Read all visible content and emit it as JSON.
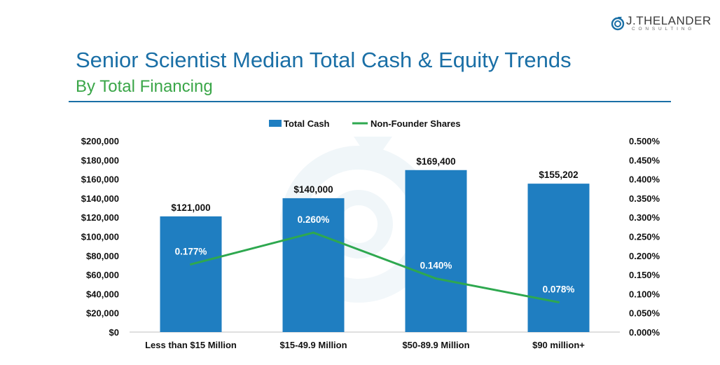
{
  "logo": {
    "name": "J.THELANDER",
    "sub": "CONSULTING",
    "icon": "spiral-logo-icon"
  },
  "header": {
    "title": "Senior Scientist Median Total Cash & Equity Trends",
    "subtitle": "By Total Financing"
  },
  "colors": {
    "bar": "#1f7ec1",
    "line": "#2ea84f",
    "title": "#1a6fa6",
    "subtitle": "#3aa648"
  },
  "chart_data": {
    "type": "bar",
    "categories": [
      "Less than $15 Million",
      "$15-49.9 Million",
      "$50-89.9 Million",
      "$90 million+"
    ],
    "series": [
      {
        "name": "Total Cash",
        "type": "bar",
        "axis": "left",
        "values": [
          121000,
          140000,
          169400,
          155202
        ],
        "labels": [
          "$121,000",
          "$140,000",
          "$169,400",
          "$155,202"
        ]
      },
      {
        "name": "Non-Founder Shares",
        "type": "line",
        "axis": "right",
        "values": [
          0.177,
          0.26,
          0.14,
          0.078
        ],
        "labels": [
          "0.177%",
          "0.260%",
          "0.140%",
          "0.078%"
        ]
      }
    ],
    "left_axis": {
      "ylim": [
        0,
        200000
      ],
      "ticks": [
        "$0",
        "$20,000",
        "$40,000",
        "$60,000",
        "$80,000",
        "$100,000",
        "$120,000",
        "$140,000",
        "$160,000",
        "$180,000",
        "$200,000"
      ]
    },
    "right_axis": {
      "ylim": [
        0,
        0.5
      ],
      "ticks": [
        "0.000%",
        "0.050%",
        "0.100%",
        "0.150%",
        "0.200%",
        "0.250%",
        "0.300%",
        "0.350%",
        "0.400%",
        "0.450%",
        "0.500%"
      ]
    },
    "legend": [
      "Total Cash",
      "Non-Founder Shares"
    ],
    "legend_position": "top",
    "grid": false
  }
}
